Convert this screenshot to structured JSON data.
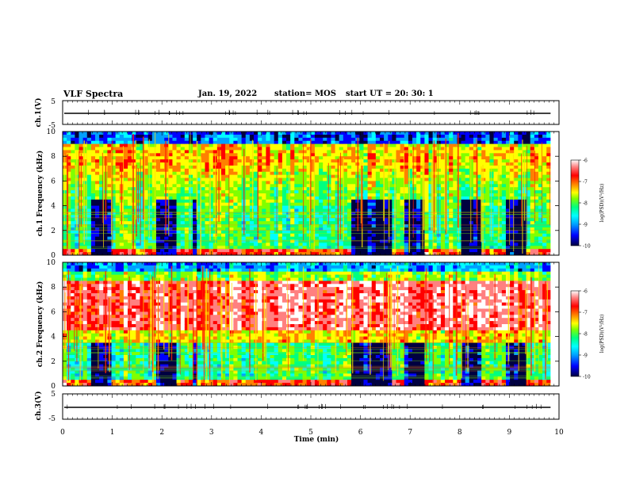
{
  "header": {
    "title": "VLF Spectra",
    "date": "Jan. 19, 2022",
    "station": "station= MOS",
    "start": "start  UT =   20: 30: 1"
  },
  "chart_data": [
    {
      "type": "line",
      "panel": "ch1-waveform",
      "ylabel": "ch.1(V)",
      "yticks": [
        "5",
        "-5"
      ],
      "ylim": [
        -5,
        5
      ],
      "x": [
        0,
        10
      ],
      "values": [
        0,
        0
      ],
      "xlim": [
        0,
        10
      ]
    },
    {
      "type": "heatmap",
      "panel": "ch1-spectrogram",
      "ylabel": "ch.1 Frequency (kHz)",
      "yticks": [
        "0",
        "2",
        "4",
        "6",
        "8",
        "10"
      ],
      "ylim": [
        0,
        10
      ],
      "xlim": [
        0,
        10
      ],
      "data_end_min": 9.83,
      "colorbar": {
        "label": "log(PSD)(V²/Hz)",
        "ticks": [
          "-6",
          "-7",
          "-8",
          "-9",
          "-10"
        ],
        "range": [
          -10,
          -6
        ]
      },
      "dark_gaps_min": [
        [
          0.6,
          1.0
        ],
        [
          1.9,
          2.3
        ],
        [
          2.6,
          2.7
        ],
        [
          5.8,
          6.6
        ],
        [
          6.9,
          7.3
        ],
        [
          8.0,
          8.4
        ],
        [
          8.9,
          9.3
        ]
      ]
    },
    {
      "type": "heatmap",
      "panel": "ch2-spectrogram",
      "ylabel": "ch.2 Frequency (kHz)",
      "yticks": [
        "0",
        "2",
        "4",
        "6",
        "8",
        "10"
      ],
      "ylim": [
        0,
        10
      ],
      "xlim": [
        0,
        10
      ],
      "data_end_min": 9.83,
      "colorbar": {
        "label": "log(PSD)(V²/Hz)",
        "ticks": [
          "-6",
          "-7",
          "-8",
          "-9",
          "-10"
        ],
        "range": [
          -10,
          -6
        ]
      },
      "dark_gaps_min": [
        [
          0.6,
          1.0
        ],
        [
          1.9,
          2.3
        ],
        [
          2.6,
          2.7
        ],
        [
          5.8,
          6.6
        ],
        [
          6.9,
          7.3
        ],
        [
          8.0,
          8.4
        ],
        [
          8.9,
          9.3
        ]
      ]
    },
    {
      "type": "line",
      "panel": "ch3-waveform",
      "ylabel": "ch.3(V)",
      "yticks": [
        "5",
        "-5"
      ],
      "ylim": [
        -5,
        5
      ],
      "x": [
        0,
        10
      ],
      "values": [
        0,
        0
      ],
      "xlim": [
        0,
        10
      ]
    }
  ],
  "xaxis": {
    "label": "Time  (min)",
    "ticks": [
      "0",
      "1",
      "2",
      "3",
      "4",
      "5",
      "6",
      "7",
      "8",
      "9",
      "10"
    ]
  },
  "colors": {
    "scale": [
      "#000040",
      "#0000ff",
      "#00a0ff",
      "#00ffff",
      "#00ff80",
      "#80ff00",
      "#ffff00",
      "#ff8000",
      "#ff0000",
      "#ff8080",
      "#ffffff"
    ]
  }
}
